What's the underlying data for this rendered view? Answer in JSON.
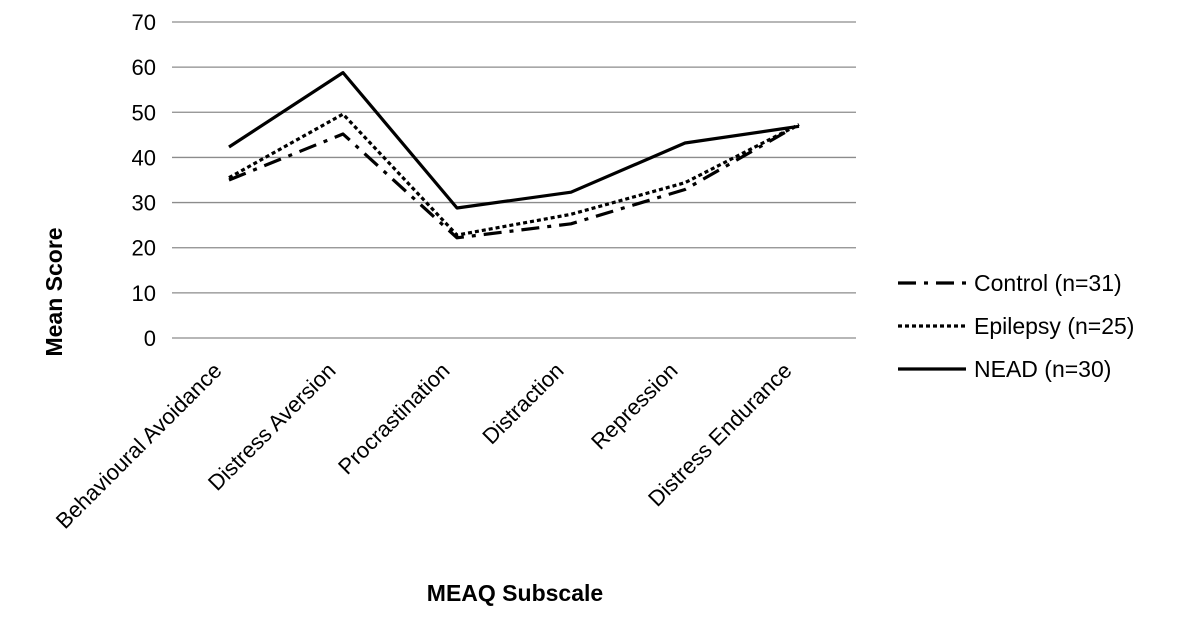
{
  "chart_data": {
    "type": "line",
    "title": "",
    "xlabel": "MEAQ Subscale",
    "ylabel": "Mean Score",
    "ylim": [
      0,
      70
    ],
    "yticks": [
      0,
      10,
      20,
      30,
      40,
      50,
      60,
      70
    ],
    "grid": true,
    "legend_position": "right",
    "categories": [
      "Behavioural Avoidance",
      "Distress Aversion",
      "Procrastination",
      "Distraction",
      "Repression",
      "Distress Endurance"
    ],
    "series": [
      {
        "name": "Control (n=31)",
        "style": "dash-dot",
        "color": "#000000",
        "values": [
          35.0,
          45.2,
          22.2,
          25.3,
          32.9,
          47.3
        ]
      },
      {
        "name": "Epilepsy (n=25)",
        "style": "dotted",
        "color": "#000000",
        "values": [
          35.5,
          49.6,
          22.8,
          27.4,
          34.4,
          47.3
        ]
      },
      {
        "name": "NEAD (n=30)",
        "style": "solid",
        "color": "#000000",
        "values": [
          42.3,
          58.8,
          28.8,
          32.3,
          43.2,
          46.9
        ]
      }
    ]
  }
}
